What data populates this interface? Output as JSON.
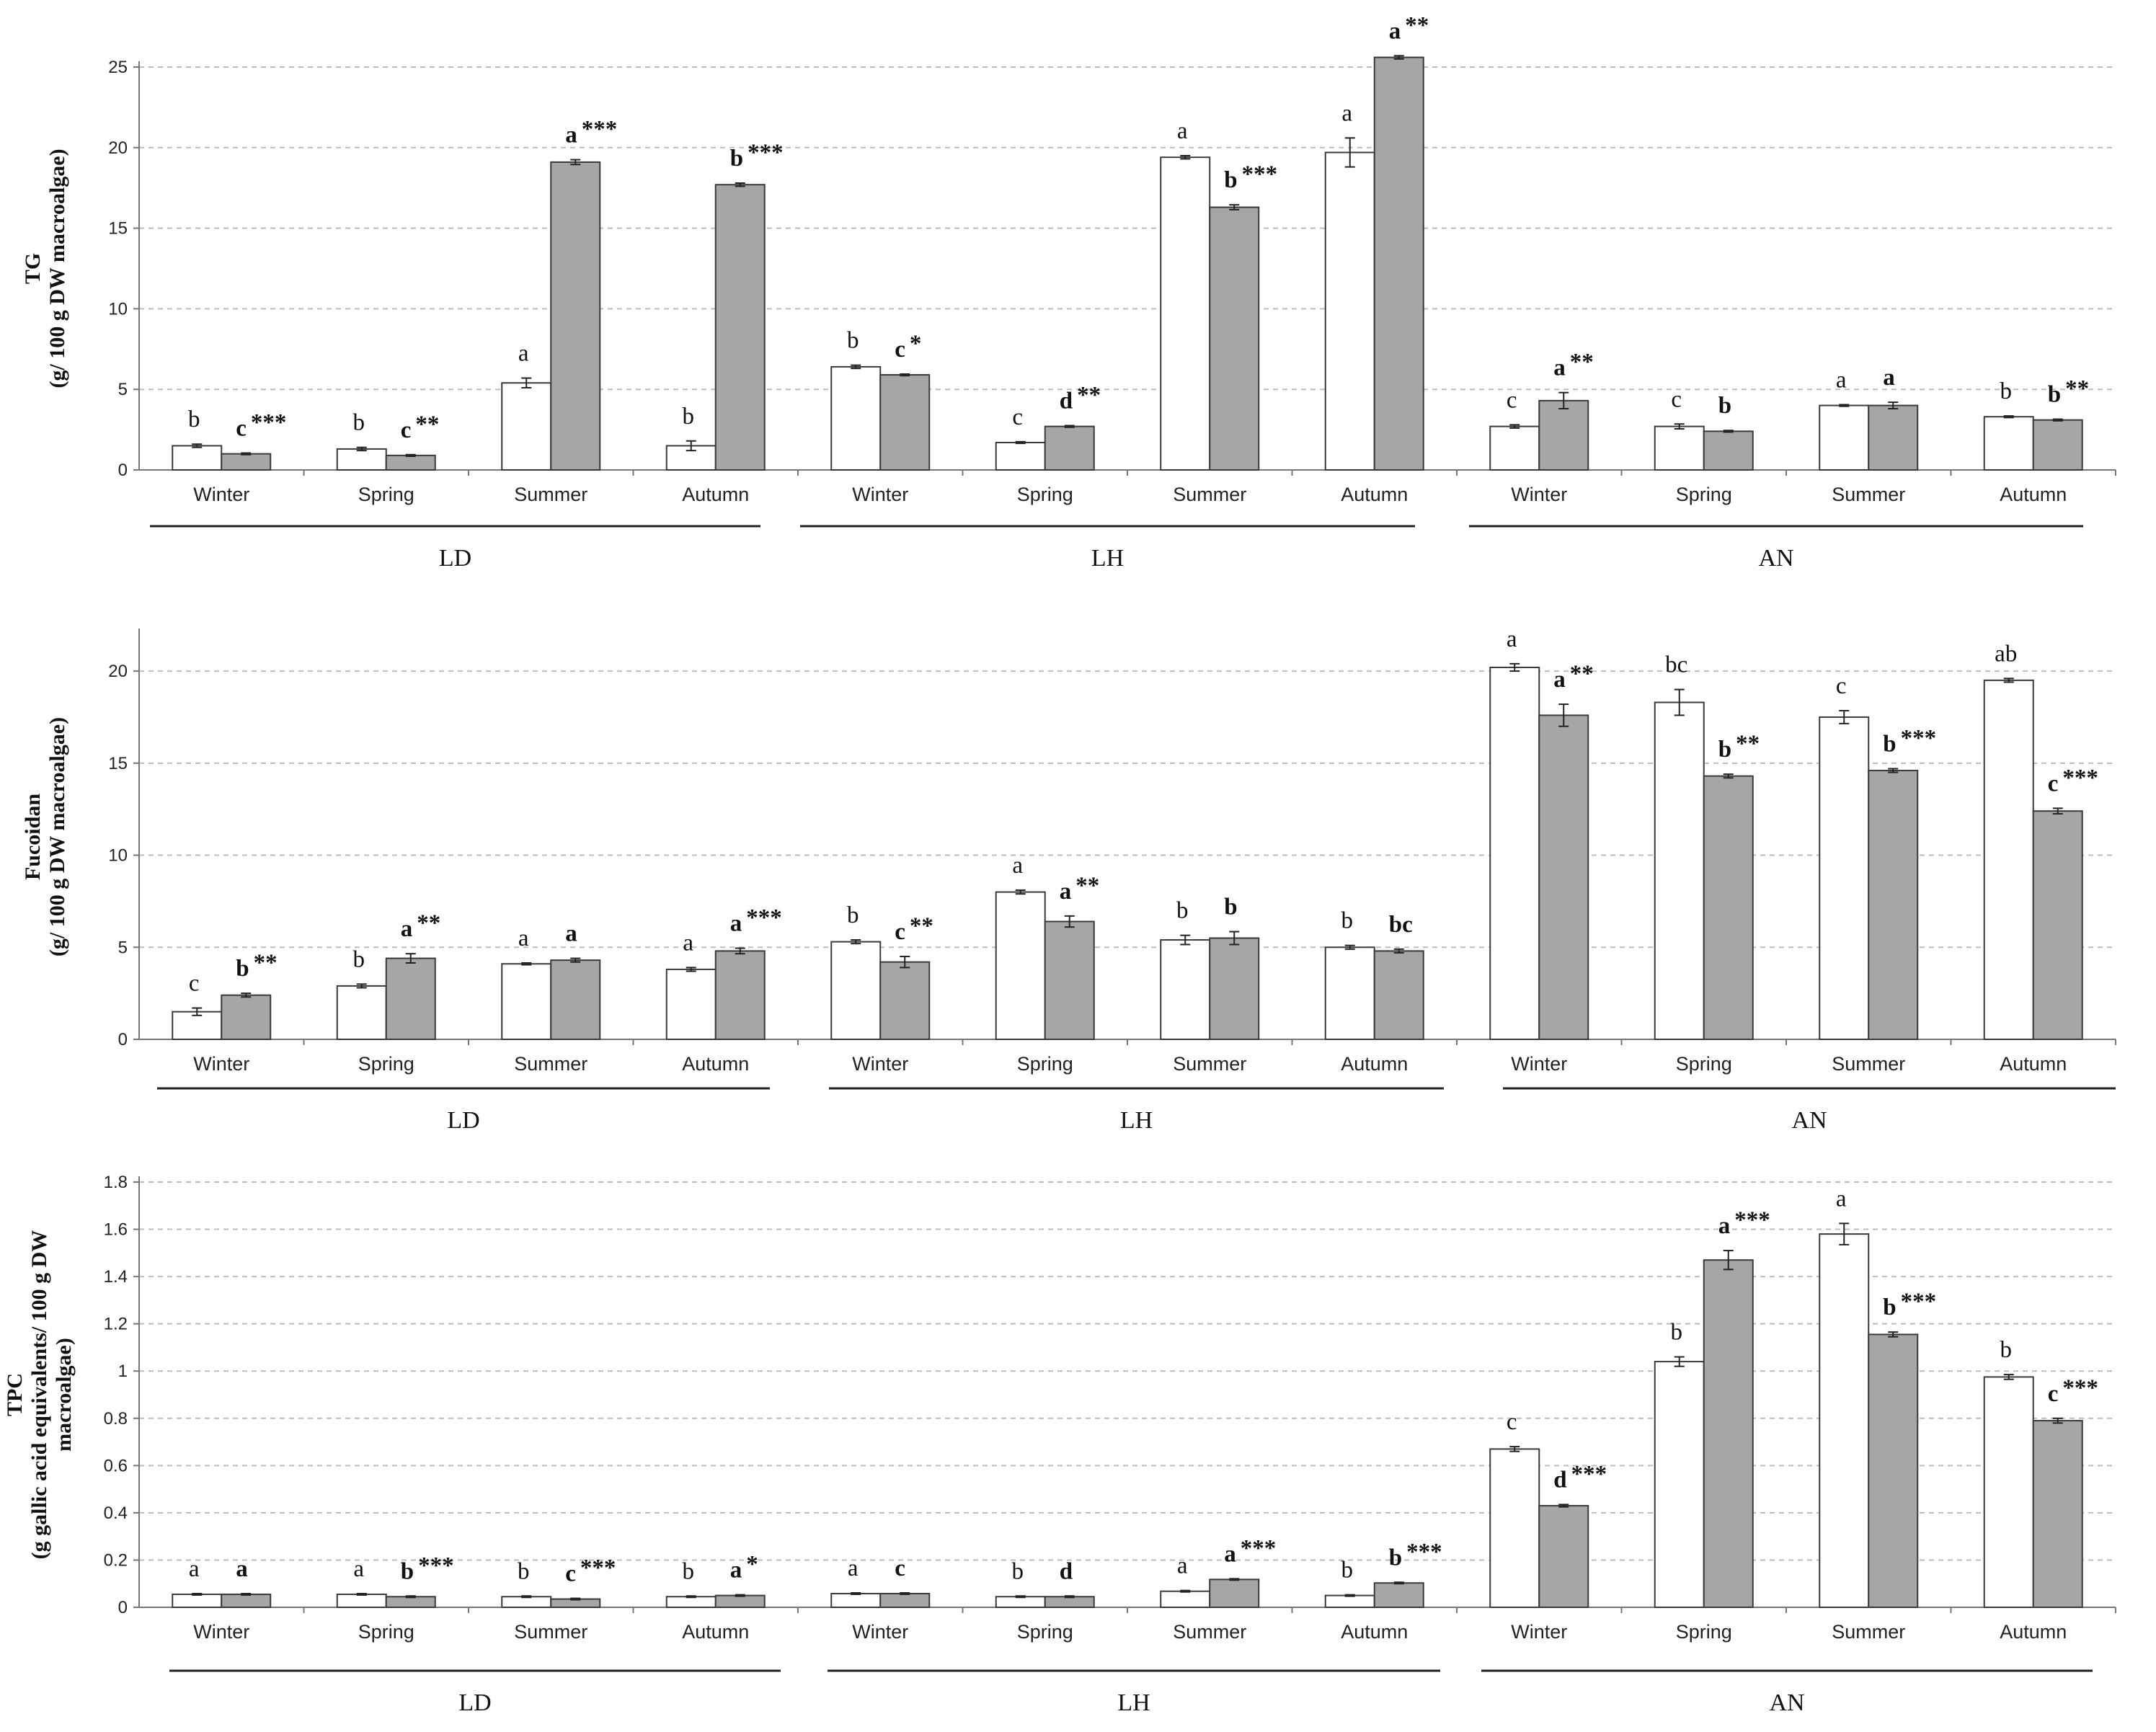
{
  "chart_data": [
    {
      "type": "bar",
      "title": "",
      "ylabel": [
        "TG",
        "(g/ 100 g DW macroalgae)"
      ],
      "ylim": [
        0,
        25
      ],
      "yticks": [
        0,
        5,
        10,
        15,
        20,
        25
      ],
      "ytick_labels": [
        "0",
        "5",
        "10",
        "15",
        "20",
        "25"
      ],
      "grid": true,
      "groups": [
        {
          "label": "LD",
          "categories": [
            {
              "label": "Winter",
              "bars": [
                {
                  "value": 1.5,
                  "err": 0.1,
                  "sig": "b",
                  "style": "white"
                },
                {
                  "value": 1.0,
                  "err": 0.05,
                  "sig": "c ***",
                  "style": "grey"
                }
              ]
            },
            {
              "label": "Spring",
              "bars": [
                {
                  "value": 1.3,
                  "err": 0.1,
                  "sig": "b",
                  "style": "white"
                },
                {
                  "value": 0.9,
                  "err": 0.05,
                  "sig": "c **",
                  "style": "grey"
                }
              ]
            },
            {
              "label": "Summer",
              "bars": [
                {
                  "value": 5.4,
                  "err": 0.3,
                  "sig": "a",
                  "style": "white"
                },
                {
                  "value": 19.1,
                  "err": 0.15,
                  "sig": "a ***",
                  "style": "grey"
                }
              ]
            },
            {
              "label": "Autumn",
              "bars": [
                {
                  "value": 1.5,
                  "err": 0.3,
                  "sig": "b",
                  "style": "white"
                },
                {
                  "value": 17.7,
                  "err": 0.1,
                  "sig": "b ***",
                  "style": "grey"
                }
              ]
            }
          ]
        },
        {
          "label": "LH",
          "categories": [
            {
              "label": "Winter",
              "bars": [
                {
                  "value": 6.4,
                  "err": 0.1,
                  "sig": "b",
                  "style": "white"
                },
                {
                  "value": 5.9,
                  "err": 0.05,
                  "sig": "c *",
                  "style": "grey"
                }
              ]
            },
            {
              "label": "Spring",
              "bars": [
                {
                  "value": 1.7,
                  "err": 0.05,
                  "sig": "c",
                  "style": "white"
                },
                {
                  "value": 2.7,
                  "err": 0.05,
                  "sig": "d **",
                  "style": "grey"
                }
              ]
            },
            {
              "label": "Summer",
              "bars": [
                {
                  "value": 19.4,
                  "err": 0.1,
                  "sig": "a",
                  "style": "white"
                },
                {
                  "value": 16.3,
                  "err": 0.15,
                  "sig": "b ***",
                  "style": "grey"
                }
              ]
            },
            {
              "label": "Autumn",
              "bars": [
                {
                  "value": 19.7,
                  "err": 0.9,
                  "sig": "a",
                  "style": "white"
                },
                {
                  "value": 25.6,
                  "err": 0.1,
                  "sig": "a **",
                  "style": "grey"
                }
              ]
            }
          ]
        },
        {
          "label": "AN",
          "categories": [
            {
              "label": "Winter",
              "bars": [
                {
                  "value": 2.7,
                  "err": 0.1,
                  "sig": "c",
                  "style": "white"
                },
                {
                  "value": 4.3,
                  "err": 0.5,
                  "sig": "a **",
                  "style": "grey"
                }
              ]
            },
            {
              "label": "Spring",
              "bars": [
                {
                  "value": 2.7,
                  "err": 0.15,
                  "sig": "c",
                  "style": "white"
                },
                {
                  "value": 2.4,
                  "err": 0.05,
                  "sig": "b",
                  "style": "grey"
                }
              ]
            },
            {
              "label": "Summer",
              "bars": [
                {
                  "value": 4.0,
                  "err": 0.05,
                  "sig": "a",
                  "style": "white"
                },
                {
                  "value": 4.0,
                  "err": 0.2,
                  "sig": "a",
                  "style": "grey"
                }
              ]
            },
            {
              "label": "Autumn",
              "bars": [
                {
                  "value": 3.3,
                  "err": 0.05,
                  "sig": "b",
                  "style": "white"
                },
                {
                  "value": 3.1,
                  "err": 0.05,
                  "sig": "b **",
                  "style": "grey"
                }
              ]
            }
          ]
        }
      ]
    },
    {
      "type": "bar",
      "title": "",
      "ylabel": [
        "Fucoidan",
        "(g/ 100 g DW macroalgae)"
      ],
      "ylim": [
        0,
        22
      ],
      "yticks": [
        0,
        5,
        10,
        15,
        20
      ],
      "ytick_labels": [
        "0",
        "5",
        "10",
        "15",
        "20"
      ],
      "grid": true,
      "groups": [
        {
          "label": "LD",
          "categories": [
            {
              "label": "Winter",
              "bars": [
                {
                  "value": 1.5,
                  "err": 0.2,
                  "sig": "c",
                  "style": "white"
                },
                {
                  "value": 2.4,
                  "err": 0.1,
                  "sig": "b **",
                  "style": "grey"
                }
              ]
            },
            {
              "label": "Spring",
              "bars": [
                {
                  "value": 2.9,
                  "err": 0.1,
                  "sig": "b",
                  "style": "white"
                },
                {
                  "value": 4.4,
                  "err": 0.25,
                  "sig": "a **",
                  "style": "grey"
                }
              ]
            },
            {
              "label": "Summer",
              "bars": [
                {
                  "value": 4.1,
                  "err": 0.05,
                  "sig": "a",
                  "style": "white"
                },
                {
                  "value": 4.3,
                  "err": 0.1,
                  "sig": "a",
                  "style": "grey"
                }
              ]
            },
            {
              "label": "Autumn",
              "bars": [
                {
                  "value": 3.8,
                  "err": 0.1,
                  "sig": "a",
                  "style": "white"
                },
                {
                  "value": 4.8,
                  "err": 0.15,
                  "sig": "a***",
                  "style": "grey"
                }
              ]
            }
          ]
        },
        {
          "label": "LH",
          "categories": [
            {
              "label": "Winter",
              "bars": [
                {
                  "value": 5.3,
                  "err": 0.1,
                  "sig": "b",
                  "style": "white"
                },
                {
                  "value": 4.2,
                  "err": 0.3,
                  "sig": "c **",
                  "style": "grey"
                }
              ]
            },
            {
              "label": "Spring",
              "bars": [
                {
                  "value": 8.0,
                  "err": 0.1,
                  "sig": "a",
                  "style": "white"
                },
                {
                  "value": 6.4,
                  "err": 0.3,
                  "sig": "a **",
                  "style": "grey"
                }
              ]
            },
            {
              "label": "Summer",
              "bars": [
                {
                  "value": 5.4,
                  "err": 0.25,
                  "sig": "b",
                  "style": "white"
                },
                {
                  "value": 5.5,
                  "err": 0.35,
                  "sig": "b",
                  "style": "grey"
                }
              ]
            },
            {
              "label": "Autumn",
              "bars": [
                {
                  "value": 5.0,
                  "err": 0.1,
                  "sig": "b",
                  "style": "white"
                },
                {
                  "value": 4.8,
                  "err": 0.1,
                  "sig": "bc",
                  "style": "grey"
                }
              ]
            }
          ]
        },
        {
          "label": "AN",
          "categories": [
            {
              "label": "Winter",
              "bars": [
                {
                  "value": 20.2,
                  "err": 0.2,
                  "sig": "a",
                  "style": "white"
                },
                {
                  "value": 17.6,
                  "err": 0.6,
                  "sig": "a **",
                  "style": "grey"
                }
              ]
            },
            {
              "label": "Spring",
              "bars": [
                {
                  "value": 18.3,
                  "err": 0.7,
                  "sig": "bc",
                  "style": "white"
                },
                {
                  "value": 14.3,
                  "err": 0.1,
                  "sig": "b **",
                  "style": "grey"
                }
              ]
            },
            {
              "label": "Summer",
              "bars": [
                {
                  "value": 17.5,
                  "err": 0.35,
                  "sig": "c",
                  "style": "white"
                },
                {
                  "value": 14.6,
                  "err": 0.1,
                  "sig": "b ***",
                  "style": "grey"
                }
              ]
            },
            {
              "label": "Autumn",
              "bars": [
                {
                  "value": 19.5,
                  "err": 0.1,
                  "sig": "ab",
                  "style": "white"
                },
                {
                  "value": 12.4,
                  "err": 0.15,
                  "sig": "c ***",
                  "style": "grey"
                }
              ]
            }
          ]
        }
      ]
    },
    {
      "type": "bar",
      "title": "",
      "ylabel": [
        "TPC",
        "(g gallic acid equivalents/ 100 g DW",
        "macroalgae)"
      ],
      "ylim": [
        0,
        1.8
      ],
      "yticks": [
        0,
        0.2,
        0.4,
        0.6,
        0.8,
        1,
        1.2,
        1.4,
        1.6,
        1.8
      ],
      "ytick_labels": [
        "0",
        "0.2",
        "0.4",
        "0.6",
        "0.8",
        "1",
        "1.2",
        "1.4",
        "1.6",
        "1.8"
      ],
      "grid": true,
      "groups": [
        {
          "label": "LD",
          "categories": [
            {
              "label": "Winter",
              "bars": [
                {
                  "value": 0.055,
                  "err": 0.003,
                  "sig": "a",
                  "style": "white"
                },
                {
                  "value": 0.055,
                  "err": 0.003,
                  "sig": "a",
                  "style": "grey"
                }
              ]
            },
            {
              "label": "Spring",
              "bars": [
                {
                  "value": 0.055,
                  "err": 0.003,
                  "sig": "a",
                  "style": "white"
                },
                {
                  "value": 0.045,
                  "err": 0.003,
                  "sig": "b***",
                  "style": "grey"
                }
              ]
            },
            {
              "label": "Summer",
              "bars": [
                {
                  "value": 0.045,
                  "err": 0.003,
                  "sig": "b",
                  "style": "white"
                },
                {
                  "value": 0.035,
                  "err": 0.003,
                  "sig": "c***",
                  "style": "grey"
                }
              ]
            },
            {
              "label": "Autumn",
              "bars": [
                {
                  "value": 0.045,
                  "err": 0.003,
                  "sig": "b",
                  "style": "white"
                },
                {
                  "value": 0.05,
                  "err": 0.003,
                  "sig": "a*",
                  "style": "grey"
                }
              ]
            }
          ]
        },
        {
          "label": "LH",
          "categories": [
            {
              "label": "Winter",
              "bars": [
                {
                  "value": 0.058,
                  "err": 0.003,
                  "sig": "a",
                  "style": "white"
                },
                {
                  "value": 0.058,
                  "err": 0.003,
                  "sig": "c",
                  "style": "grey"
                }
              ]
            },
            {
              "label": "Spring",
              "bars": [
                {
                  "value": 0.045,
                  "err": 0.003,
                  "sig": "b",
                  "style": "white"
                },
                {
                  "value": 0.045,
                  "err": 0.003,
                  "sig": "d",
                  "style": "grey"
                }
              ]
            },
            {
              "label": "Summer",
              "bars": [
                {
                  "value": 0.068,
                  "err": 0.003,
                  "sig": "a",
                  "style": "white"
                },
                {
                  "value": 0.118,
                  "err": 0.003,
                  "sig": "a***",
                  "style": "grey"
                }
              ]
            },
            {
              "label": "Autumn",
              "bars": [
                {
                  "value": 0.05,
                  "err": 0.003,
                  "sig": "b",
                  "style": "white"
                },
                {
                  "value": 0.103,
                  "err": 0.003,
                  "sig": "b ***",
                  "style": "grey"
                }
              ]
            }
          ]
        },
        {
          "label": "AN",
          "categories": [
            {
              "label": "Winter",
              "bars": [
                {
                  "value": 0.67,
                  "err": 0.01,
                  "sig": "c",
                  "style": "white"
                },
                {
                  "value": 0.43,
                  "err": 0.005,
                  "sig": "d ***",
                  "style": "grey"
                }
              ]
            },
            {
              "label": "Spring",
              "bars": [
                {
                  "value": 1.04,
                  "err": 0.02,
                  "sig": "b",
                  "style": "white"
                },
                {
                  "value": 1.47,
                  "err": 0.04,
                  "sig": "a ***",
                  "style": "grey"
                }
              ]
            },
            {
              "label": "Summer",
              "bars": [
                {
                  "value": 1.58,
                  "err": 0.045,
                  "sig": "a",
                  "style": "white"
                },
                {
                  "value": 1.155,
                  "err": 0.01,
                  "sig": "b***",
                  "style": "grey"
                }
              ]
            },
            {
              "label": "Autumn",
              "bars": [
                {
                  "value": 0.975,
                  "err": 0.01,
                  "sig": "b",
                  "style": "white"
                },
                {
                  "value": 0.79,
                  "err": 0.01,
                  "sig": "c ***",
                  "style": "grey"
                }
              ]
            }
          ]
        }
      ]
    }
  ]
}
